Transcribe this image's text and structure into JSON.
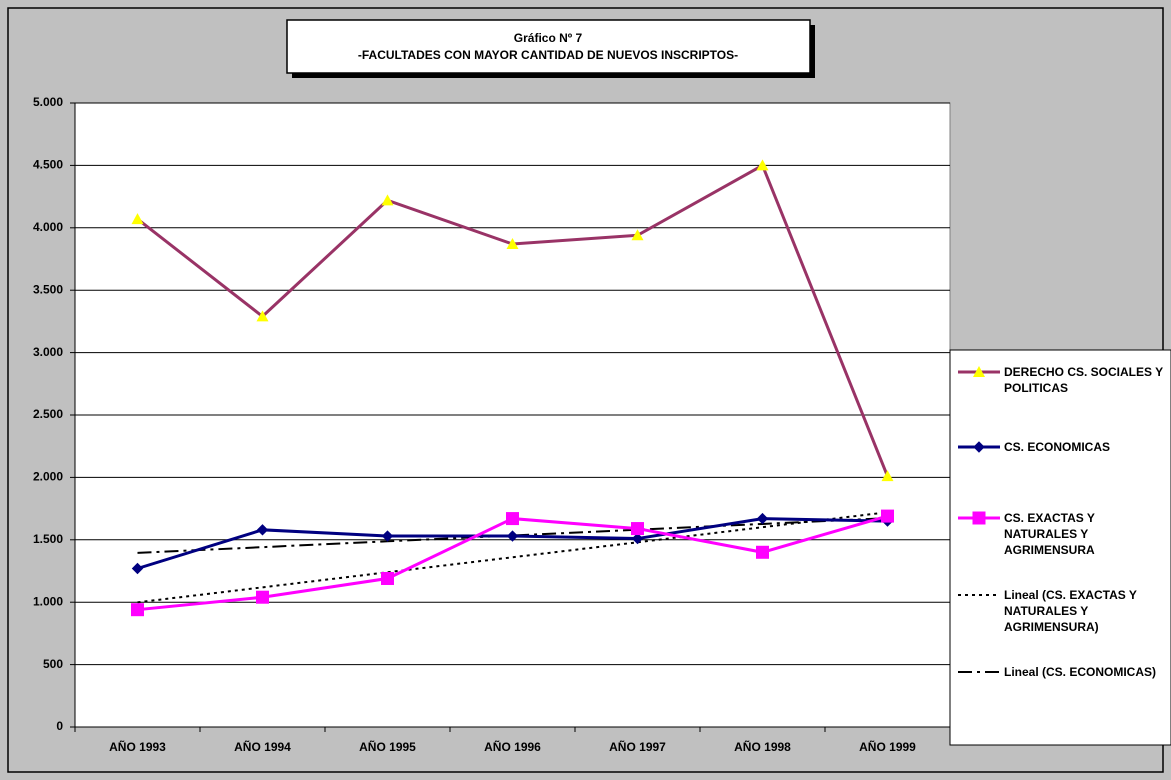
{
  "chart_data": {
    "type": "line",
    "title": "Gráfico Nº 7",
    "subtitle": "-FACULTADES CON MAYOR CANTIDAD DE NUEVOS INSCRIPTOS-",
    "categories": [
      "AÑO 1993",
      "AÑO 1994",
      "AÑO 1995",
      "AÑO 1996",
      "AÑO 1997",
      "AÑO 1998",
      "AÑO 1999"
    ],
    "series": [
      {
        "name": "DERECHO CS. SOCIALES Y POLITICAS",
        "color": "#993366",
        "marker": "triangle",
        "marker_color": "#ffff00",
        "values": [
          4070,
          3290,
          4220,
          3870,
          3940,
          4500,
          2010
        ]
      },
      {
        "name": "CS. ECONOMICAS",
        "color": "#000080",
        "marker": "diamond",
        "marker_color": "#000080",
        "values": [
          1270,
          1580,
          1530,
          1530,
          1510,
          1670,
          1650
        ]
      },
      {
        "name": "CS. EXACTAS Y NATURALES Y AGRIMENSURA",
        "color": "#ff00ff",
        "marker": "square",
        "marker_color": "#ff00ff",
        "values": [
          940,
          1040,
          1190,
          1670,
          1590,
          1400,
          1690
        ]
      },
      {
        "name": "Lineal (CS. EXACTAS Y NATURALES Y AGRIMENSURA)",
        "color": "#000000",
        "dash": "3,4",
        "values": [
          999,
          1119,
          1240,
          1360,
          1480,
          1601,
          1721
        ]
      },
      {
        "name": "Lineal (CS. ECONOMICAS)",
        "color": "#000000",
        "dash": "14,5,3,5",
        "values": [
          1395,
          1441,
          1488,
          1534,
          1581,
          1627,
          1674
        ]
      }
    ],
    "ylim": [
      0,
      5000
    ],
    "yticks": [
      0,
      500,
      {
        "value": 1000,
        "label": "1.000"
      },
      {
        "value": 1500,
        "label": "1.500"
      },
      {
        "value": 2000,
        "label": "2.000"
      },
      {
        "value": 2500,
        "label": "2.500"
      },
      {
        "value": 3000,
        "label": "3.000"
      },
      {
        "value": 3500,
        "label": "3.500"
      },
      {
        "value": 4000,
        "label": "4.000"
      },
      {
        "value": 4500,
        "label": "4.500"
      },
      {
        "value": 5000,
        "label": "5.000"
      }
    ],
    "grid": true,
    "legend": "right"
  }
}
